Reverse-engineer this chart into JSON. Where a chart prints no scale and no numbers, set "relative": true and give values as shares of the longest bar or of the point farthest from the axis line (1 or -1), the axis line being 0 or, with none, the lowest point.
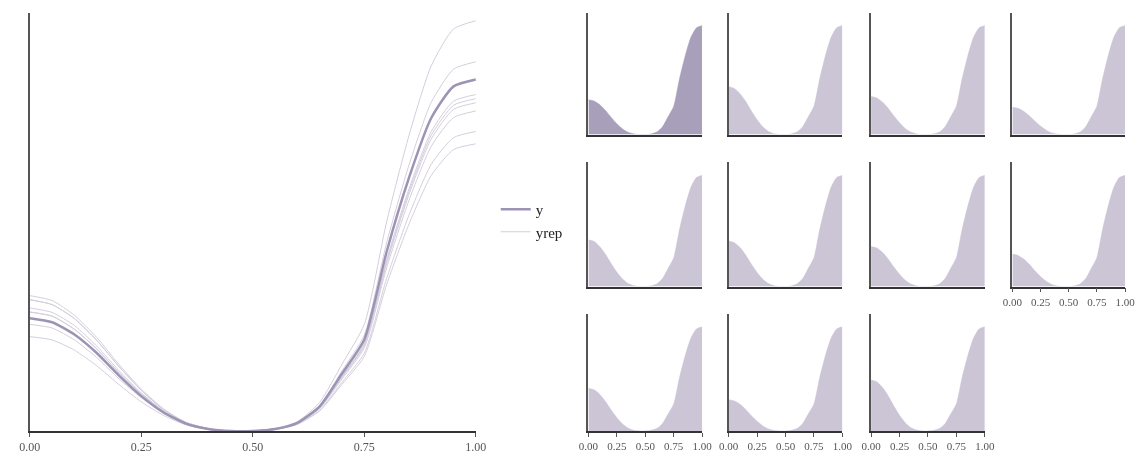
{
  "chart_data": [
    {
      "type": "line",
      "relative": true,
      "xlim": [
        0,
        1
      ],
      "xticks": [
        {
          "value": 0,
          "label": "0.00"
        },
        {
          "value": 0.25,
          "label": "0.25"
        },
        {
          "value": 0.5,
          "label": "0.50"
        },
        {
          "value": 0.75,
          "label": "0.75"
        },
        {
          "value": 1,
          "label": "1.00"
        }
      ],
      "tick_labels": "x",
      "legend": "right",
      "x": [
        0,
        0.05,
        0.1,
        0.15,
        0.2,
        0.25,
        0.3,
        0.35,
        0.4,
        0.45,
        0.5,
        0.55,
        0.6,
        0.65,
        0.7,
        0.75,
        0.8,
        0.85,
        0.9,
        0.95,
        1
      ],
      "series": [
        {
          "name": "y",
          "color": "#9d94b5",
          "values": [
            0.275,
            0.265,
            0.235,
            0.19,
            0.135,
            0.085,
            0.045,
            0.018,
            0.005,
            0,
            0,
            0.005,
            0.02,
            0.06,
            0.14,
            0.223,
            0.437,
            0.617,
            0.763,
            0.84,
            0.857
          ]
        },
        {
          "name": "yrep",
          "color": "#d3cedd",
          "values": [
            0.33,
            0.318,
            0.282,
            0.228,
            0.162,
            0.102,
            0.054,
            0.021,
            0.006,
            0,
            0,
            0.006,
            0.023,
            0.07,
            0.163,
            0.26,
            0.51,
            0.72,
            0.89,
            0.98,
            1
          ]
        },
        {
          "color": "#d3cedd",
          "values": [
            0.32,
            0.308,
            0.274,
            0.221,
            0.157,
            0.099,
            0.052,
            0.021,
            0.006,
            0,
            0,
            0.005,
            0.021,
            0.063,
            0.147,
            0.234,
            0.459,
            0.648,
            0.801,
            0.882,
            0.9
          ]
        },
        {
          "color": "#d3cedd",
          "values": [
            0.3,
            0.289,
            0.257,
            0.207,
            0.147,
            0.093,
            0.049,
            0.02,
            0.005,
            0,
            0,
            0.005,
            0.019,
            0.057,
            0.134,
            0.213,
            0.418,
            0.59,
            0.73,
            0.804,
            0.82
          ]
        },
        {
          "color": "#d3cedd",
          "values": [
            0.29,
            0.28,
            0.248,
            0.2,
            0.142,
            0.09,
            0.048,
            0.019,
            0.005,
            0,
            0,
            0.005,
            0.019,
            0.057,
            0.132,
            0.211,
            0.413,
            0.583,
            0.721,
            0.794,
            0.81
          ]
        },
        {
          "color": "#d3cedd",
          "values": [
            0.29,
            0.28,
            0.248,
            0.2,
            0.142,
            0.09,
            0.048,
            0.019,
            0.005,
            0,
            0,
            0.005,
            0.018,
            0.056,
            0.13,
            0.208,
            0.408,
            0.576,
            0.712,
            0.784,
            0.8
          ]
        },
        {
          "color": "#d3cedd",
          "values": [
            0.26,
            0.251,
            0.222,
            0.179,
            0.127,
            0.081,
            0.043,
            0.017,
            0.005,
            0,
            0,
            0.005,
            0.018,
            0.055,
            0.127,
            0.203,
            0.398,
            0.562,
            0.694,
            0.764,
            0.78
          ]
        },
        {
          "color": "#d3cedd",
          "values": [
            0.23,
            0.222,
            0.197,
            0.159,
            0.113,
            0.071,
            0.038,
            0.015,
            0.004,
            0,
            0,
            0.004,
            0.017,
            0.051,
            0.119,
            0.19,
            0.372,
            0.526,
            0.65,
            0.715,
            0.73
          ]
        },
        {
          "color": "#d3cedd",
          "values": [
            0.32,
            0.308,
            0.274,
            0.221,
            0.157,
            0.099,
            0.052,
            0.021,
            0.006,
            0,
            0,
            0.004,
            0.016,
            0.049,
            0.114,
            0.182,
            0.357,
            0.504,
            0.623,
            0.686,
            0.7
          ]
        }
      ]
    },
    {
      "type": "area",
      "relative": true,
      "xlim": [
        0,
        1
      ],
      "tick_labels": false,
      "x": [
        0,
        0.05,
        0.1,
        0.15,
        0.2,
        0.25,
        0.3,
        0.35,
        0.4,
        0.45,
        0.5,
        0.55,
        0.6,
        0.65,
        0.7,
        0.75,
        0.8,
        0.85,
        0.9,
        0.95,
        1
      ],
      "series": [
        {
          "color": "#a89fba",
          "values": [
            0.32,
            0.308,
            0.274,
            0.221,
            0.157,
            0.099,
            0.052,
            0.021,
            0.006,
            0,
            0,
            0.006,
            0.023,
            0.07,
            0.163,
            0.26,
            0.51,
            0.72,
            0.89,
            0.98,
            1
          ]
        }
      ]
    },
    {
      "type": "area",
      "relative": true,
      "xlim": [
        0,
        1
      ],
      "tick_labels": false,
      "x": [
        0,
        0.05,
        0.1,
        0.15,
        0.2,
        0.25,
        0.3,
        0.35,
        0.4,
        0.45,
        0.5,
        0.55,
        0.6,
        0.65,
        0.7,
        0.75,
        0.8,
        0.85,
        0.9,
        0.95,
        1
      ],
      "series": [
        {
          "color": "#cbc5d6",
          "values": [
            0.44,
            0.424,
            0.376,
            0.304,
            0.216,
            0.136,
            0.072,
            0.029,
            0.008,
            0,
            0,
            0.006,
            0.023,
            0.07,
            0.163,
            0.26,
            0.51,
            0.72,
            0.89,
            0.98,
            1
          ]
        }
      ]
    },
    {
      "type": "area",
      "relative": true,
      "xlim": [
        0,
        1
      ],
      "tick_labels": false,
      "x": [
        0,
        0.05,
        0.1,
        0.15,
        0.2,
        0.25,
        0.3,
        0.35,
        0.4,
        0.45,
        0.5,
        0.55,
        0.6,
        0.65,
        0.7,
        0.75,
        0.8,
        0.85,
        0.9,
        0.95,
        1
      ],
      "series": [
        {
          "color": "#cbc5d6",
          "values": [
            0.35,
            0.337,
            0.299,
            0.242,
            0.172,
            0.109,
            0.057,
            0.023,
            0.006,
            0,
            0,
            0.006,
            0.023,
            0.07,
            0.163,
            0.26,
            0.51,
            0.72,
            0.89,
            0.98,
            1
          ]
        }
      ]
    },
    {
      "type": "area",
      "relative": true,
      "xlim": [
        0,
        1
      ],
      "tick_labels": false,
      "x": [
        0,
        0.05,
        0.1,
        0.15,
        0.2,
        0.25,
        0.3,
        0.35,
        0.4,
        0.45,
        0.5,
        0.55,
        0.6,
        0.65,
        0.7,
        0.75,
        0.8,
        0.85,
        0.9,
        0.95,
        1
      ],
      "series": [
        {
          "color": "#cbc5d6",
          "values": [
            0.25,
            0.241,
            0.214,
            0.173,
            0.123,
            0.078,
            0.041,
            0.016,
            0.005,
            0,
            0,
            0.006,
            0.023,
            0.07,
            0.163,
            0.26,
            0.51,
            0.72,
            0.89,
            0.98,
            1
          ]
        }
      ]
    },
    {
      "type": "area",
      "relative": true,
      "xlim": [
        0,
        1
      ],
      "tick_labels": false,
      "x": [
        0,
        0.05,
        0.1,
        0.15,
        0.2,
        0.25,
        0.3,
        0.35,
        0.4,
        0.45,
        0.5,
        0.55,
        0.6,
        0.65,
        0.7,
        0.75,
        0.8,
        0.85,
        0.9,
        0.95,
        1
      ],
      "series": [
        {
          "color": "#cbc5d6",
          "values": [
            0.42,
            0.405,
            0.359,
            0.29,
            0.206,
            0.13,
            0.069,
            0.027,
            0.008,
            0,
            0,
            0.006,
            0.023,
            0.07,
            0.163,
            0.26,
            0.51,
            0.72,
            0.89,
            0.98,
            1
          ]
        }
      ]
    },
    {
      "type": "area",
      "relative": true,
      "xlim": [
        0,
        1
      ],
      "tick_labels": false,
      "x": [
        0,
        0.05,
        0.1,
        0.15,
        0.2,
        0.25,
        0.3,
        0.35,
        0.4,
        0.45,
        0.5,
        0.55,
        0.6,
        0.65,
        0.7,
        0.75,
        0.8,
        0.85,
        0.9,
        0.95,
        1
      ],
      "series": [
        {
          "color": "#cbc5d6",
          "values": [
            0.41,
            0.395,
            0.351,
            0.283,
            0.201,
            0.127,
            0.067,
            0.027,
            0.007,
            0,
            0,
            0.006,
            0.023,
            0.07,
            0.163,
            0.26,
            0.51,
            0.72,
            0.89,
            0.98,
            1
          ]
        }
      ]
    },
    {
      "type": "area",
      "relative": true,
      "xlim": [
        0,
        1
      ],
      "tick_labels": false,
      "x": [
        0,
        0.05,
        0.1,
        0.15,
        0.2,
        0.25,
        0.3,
        0.35,
        0.4,
        0.45,
        0.5,
        0.55,
        0.6,
        0.65,
        0.7,
        0.75,
        0.8,
        0.85,
        0.9,
        0.95,
        1
      ],
      "series": [
        {
          "color": "#cbc5d6",
          "values": [
            0.36,
            0.347,
            0.308,
            0.248,
            0.176,
            0.112,
            0.059,
            0.023,
            0.006,
            0,
            0,
            0.006,
            0.023,
            0.07,
            0.163,
            0.26,
            0.51,
            0.72,
            0.89,
            0.98,
            1
          ]
        }
      ]
    },
    {
      "type": "area",
      "relative": true,
      "xlim": [
        0,
        1
      ],
      "xticks": [
        {
          "value": 0,
          "label": "0.00"
        },
        {
          "value": 0.25,
          "label": "0.25"
        },
        {
          "value": 0.5,
          "label": "0.50"
        },
        {
          "value": 0.75,
          "label": "0.75"
        },
        {
          "value": 1,
          "label": "1.00"
        }
      ],
      "tick_labels": "x",
      "x": [
        0,
        0.05,
        0.1,
        0.15,
        0.2,
        0.25,
        0.3,
        0.35,
        0.4,
        0.45,
        0.5,
        0.55,
        0.6,
        0.65,
        0.7,
        0.75,
        0.8,
        0.85,
        0.9,
        0.95,
        1
      ],
      "series": [
        {
          "color": "#cbc5d6",
          "values": [
            0.29,
            0.28,
            0.248,
            0.2,
            0.142,
            0.09,
            0.048,
            0.019,
            0.005,
            0,
            0,
            0.006,
            0.023,
            0.07,
            0.163,
            0.26,
            0.51,
            0.72,
            0.89,
            0.98,
            1
          ]
        }
      ]
    },
    {
      "type": "area",
      "relative": true,
      "xlim": [
        0,
        1
      ],
      "xticks": [
        {
          "value": 0,
          "label": "0.00"
        },
        {
          "value": 0.25,
          "label": "0.25"
        },
        {
          "value": 0.5,
          "label": "0.50"
        },
        {
          "value": 0.75,
          "label": "0.75"
        },
        {
          "value": 1,
          "label": "1.00"
        }
      ],
      "tick_labels": "x",
      "x": [
        0,
        0.05,
        0.1,
        0.15,
        0.2,
        0.25,
        0.3,
        0.35,
        0.4,
        0.45,
        0.5,
        0.55,
        0.6,
        0.65,
        0.7,
        0.75,
        0.8,
        0.85,
        0.9,
        0.95,
        1
      ],
      "series": [
        {
          "color": "#cbc5d6",
          "values": [
            0.41,
            0.395,
            0.351,
            0.283,
            0.201,
            0.127,
            0.067,
            0.027,
            0.007,
            0,
            0,
            0.006,
            0.023,
            0.07,
            0.163,
            0.26,
            0.51,
            0.72,
            0.89,
            0.98,
            1
          ]
        }
      ]
    },
    {
      "type": "area",
      "relative": true,
      "xlim": [
        0,
        1
      ],
      "xticks": [
        {
          "value": 0,
          "label": "0.00"
        },
        {
          "value": 0.25,
          "label": "0.25"
        },
        {
          "value": 0.5,
          "label": "0.50"
        },
        {
          "value": 0.75,
          "label": "0.75"
        },
        {
          "value": 1,
          "label": "1.00"
        }
      ],
      "tick_labels": "x",
      "x": [
        0,
        0.05,
        0.1,
        0.15,
        0.2,
        0.25,
        0.3,
        0.35,
        0.4,
        0.45,
        0.5,
        0.55,
        0.6,
        0.65,
        0.7,
        0.75,
        0.8,
        0.85,
        0.9,
        0.95,
        1
      ],
      "series": [
        {
          "color": "#cbc5d6",
          "values": [
            0.3,
            0.289,
            0.257,
            0.207,
            0.147,
            0.093,
            0.049,
            0.02,
            0.005,
            0,
            0,
            0.006,
            0.023,
            0.07,
            0.163,
            0.26,
            0.51,
            0.72,
            0.89,
            0.98,
            1
          ]
        }
      ]
    },
    {
      "type": "area",
      "relative": true,
      "xlim": [
        0,
        1
      ],
      "xticks": [
        {
          "value": 0,
          "label": "0.00"
        },
        {
          "value": 0.25,
          "label": "0.25"
        },
        {
          "value": 0.5,
          "label": "0.50"
        },
        {
          "value": 0.75,
          "label": "0.75"
        },
        {
          "value": 1,
          "label": "1.00"
        }
      ],
      "tick_labels": "x",
      "x": [
        0,
        0.05,
        0.1,
        0.15,
        0.2,
        0.25,
        0.3,
        0.35,
        0.4,
        0.45,
        0.5,
        0.55,
        0.6,
        0.65,
        0.7,
        0.75,
        0.8,
        0.85,
        0.9,
        0.95,
        1
      ],
      "series": [
        {
          "color": "#cbc5d6",
          "values": [
            0.49,
            0.472,
            0.419,
            0.338,
            0.24,
            0.152,
            0.08,
            0.032,
            0.009,
            0,
            0,
            0.006,
            0.023,
            0.07,
            0.163,
            0.26,
            0.51,
            0.72,
            0.89,
            0.98,
            1
          ]
        }
      ]
    }
  ]
}
